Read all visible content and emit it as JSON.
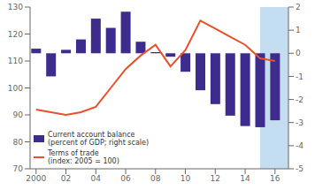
{
  "chart_data": {
    "type": "bar",
    "x": [
      2000,
      2001,
      2002,
      2003,
      2004,
      2005,
      2006,
      2007,
      2008,
      2009,
      2010,
      2011,
      2012,
      2013,
      2014,
      2015,
      2016
    ],
    "xlim": [
      1999.6,
      2016.9
    ],
    "xticks": [
      2000,
      {
        "value": 2002,
        "label": "02"
      },
      {
        "value": 2004,
        "label": "04"
      },
      {
        "value": 2006,
        "label": "06"
      },
      {
        "value": 2008,
        "label": "08"
      },
      {
        "value": 2010,
        "label": "10"
      },
      {
        "value": 2012,
        "label": "12"
      },
      {
        "value": 2014,
        "label": "14"
      },
      {
        "value": 2016,
        "label": "16"
      }
    ],
    "ylim": [
      70,
      130
    ],
    "yticks": [
      70,
      80,
      90,
      100,
      110,
      120,
      130
    ],
    "y2lim": [
      -5,
      2
    ],
    "y2ticks": [
      -5,
      -4,
      -3,
      -2,
      -1,
      0,
      1,
      2
    ],
    "series": [
      {
        "name": "Current account balance\n(percent of GDP; right scale)",
        "type": "bar",
        "axis": "y2",
        "color": "#3d2b8e",
        "values": [
          0.2,
          -1.0,
          0.15,
          0.6,
          1.5,
          1.1,
          1.8,
          0.5,
          0.05,
          -0.15,
          -0.8,
          -1.6,
          -2.2,
          -2.7,
          -3.15,
          -3.2,
          -2.9
        ]
      },
      {
        "name": "Terms of trade\n(index: 2005 = 100)",
        "type": "line",
        "color": "#e8502a",
        "values": [
          92,
          91,
          90,
          91,
          93,
          100,
          107,
          112,
          116,
          108,
          114,
          125,
          122,
          119,
          116,
          111,
          110
        ]
      }
    ],
    "shaded_span": {
      "start": 2015.0,
      "end": 2017.0,
      "color": "#c5ddf0"
    },
    "legend": "lower left"
  }
}
